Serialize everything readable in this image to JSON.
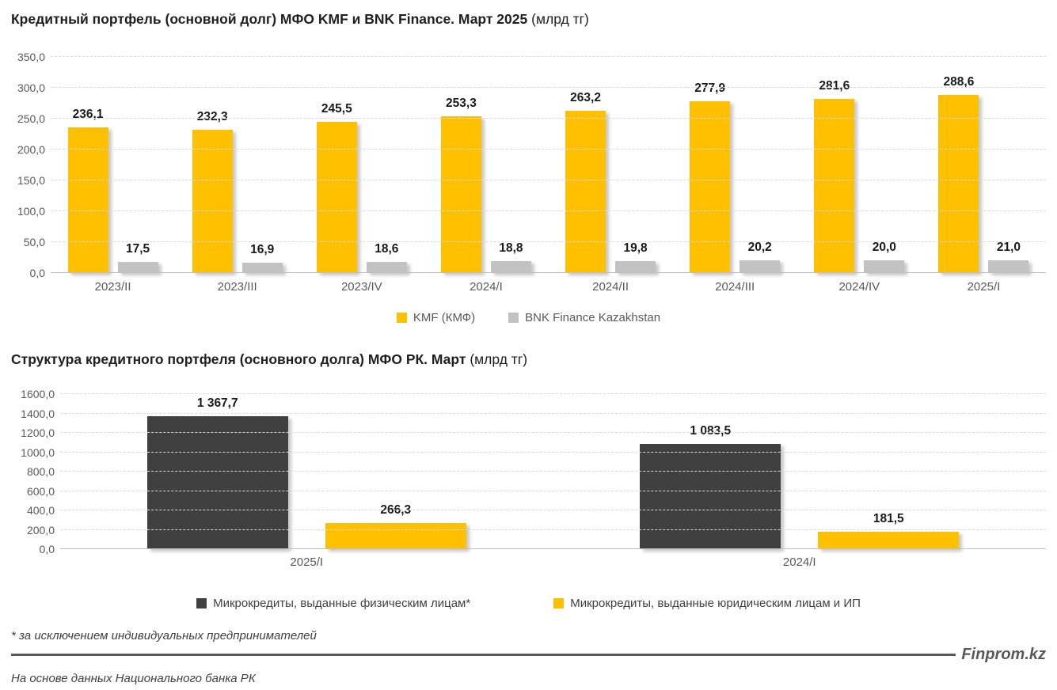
{
  "chart_data": [
    {
      "type": "bar",
      "title": "Кредитный портфель (основной долг) МФО KMF и BNK Finance. Март 2025",
      "title_units": "(млрд тг)",
      "categories": [
        "2023/II",
        "2023/III",
        "2023/IV",
        "2024/I",
        "2024/II",
        "2024/III",
        "2024/IV",
        "2025/I"
      ],
      "series": [
        {
          "name": "KMF (КМФ)",
          "color": "#FFC000",
          "values": [
            236.1,
            232.3,
            245.5,
            253.3,
            263.2,
            277.9,
            281.6,
            288.6
          ],
          "labels": [
            "236,1",
            "232,3",
            "245,5",
            "253,3",
            "263,2",
            "277,9",
            "281,6",
            "288,6"
          ]
        },
        {
          "name": "BNK Finance Kazakhstan",
          "color": "#C2C2C2",
          "values": [
            17.5,
            16.9,
            18.6,
            18.8,
            19.8,
            20.2,
            20.0,
            21.0
          ],
          "labels": [
            "17,5",
            "16,9",
            "18,6",
            "18,8",
            "19,8",
            "20,2",
            "20,0",
            "21,0"
          ]
        }
      ],
      "ylim": [
        0,
        350
      ],
      "yticks": [
        {
          "value": 0,
          "label": "0,0"
        },
        {
          "value": 50,
          "label": "50,0"
        },
        {
          "value": 100,
          "label": "100,0"
        },
        {
          "value": 150,
          "label": "150,0"
        },
        {
          "value": 200,
          "label": "200,0"
        },
        {
          "value": 250,
          "label": "250,0"
        },
        {
          "value": 300,
          "label": "300,0"
        },
        {
          "value": 350,
          "label": "350,0"
        }
      ],
      "grid": "horizontal-dashed",
      "legend_position": "bottom-center",
      "legend_text_color": "#595959"
    },
    {
      "type": "bar",
      "title": "Структура кредитного портфеля (основного долга) МФО РК. Март",
      "title_units": "(млрд тг)",
      "categories": [
        "2025/I",
        "2024/I"
      ],
      "series": [
        {
          "name": "Микрокредиты, выданные физическим лицам*",
          "color": "#404040",
          "values": [
            1367.7,
            1083.5
          ],
          "labels": [
            "1 367,7",
            "1 083,5"
          ]
        },
        {
          "name": "Микрокредиты, выданные юридическим лицам и ИП",
          "color": "#FFC000",
          "values": [
            266.3,
            181.5
          ],
          "labels": [
            "266,3",
            "181,5"
          ]
        }
      ],
      "ylim": [
        0,
        1600
      ],
      "yticks": [
        {
          "value": 0,
          "label": "0,0"
        },
        {
          "value": 200,
          "label": "200,0"
        },
        {
          "value": 400,
          "label": "400,0"
        },
        {
          "value": 600,
          "label": "600,0"
        },
        {
          "value": 800,
          "label": "800,0"
        },
        {
          "value": 1000,
          "label": "1000,0"
        },
        {
          "value": 1200,
          "label": "1200,0"
        },
        {
          "value": 1400,
          "label": "1400,0"
        },
        {
          "value": 1600,
          "label": "1600,0"
        }
      ],
      "grid": "horizontal-dashed",
      "legend_position": "bottom-spread",
      "legend_text_color": "#404040"
    }
  ],
  "footer": {
    "footnote": "* за исключением индивидуальных предпринимателей",
    "source": "На основе данных Национального банка РК",
    "brand": "Finprom.kz"
  }
}
